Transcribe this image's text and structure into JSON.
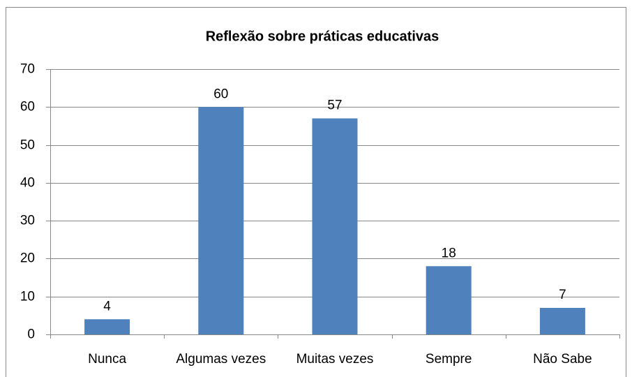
{
  "chart_data": {
    "type": "bar",
    "title": "Reflexão sobre práticas educativas",
    "categories": [
      "Nunca",
      "Algumas vezes",
      "Muitas vezes",
      "Sempre",
      "Não Sabe"
    ],
    "values": [
      4,
      60,
      57,
      18,
      7
    ],
    "color": "#4f81bd",
    "ylim": [
      0,
      70
    ],
    "yticks": [
      0,
      10,
      20,
      30,
      40,
      50,
      60,
      70
    ],
    "grid": true
  }
}
